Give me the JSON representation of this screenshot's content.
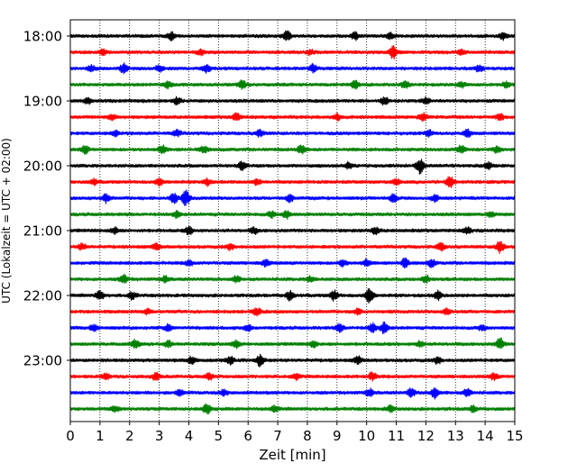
{
  "chart_data": {
    "type": "line",
    "title": "",
    "xlabel": "Zeit  [min]",
    "ylabel": "UTC (Lokalzeit = UTC + 02:00)",
    "xlim": [
      0,
      15
    ],
    "x_ticks": [
      0,
      1,
      2,
      3,
      4,
      5,
      6,
      7,
      8,
      9,
      10,
      11,
      12,
      13,
      14,
      15
    ],
    "y_tick_labels": [
      "18:00",
      "19:00",
      "20:00",
      "21:00",
      "22:00",
      "23:00"
    ],
    "trace_interval_minutes": 15,
    "start_time": "18:00",
    "trace_count": 24,
    "color_cycle": [
      "#000000",
      "#ff0000",
      "#0000ff",
      "#008000"
    ],
    "vertical_grid": "dotted",
    "series": [
      {
        "start": "18:00",
        "events": [
          [
            3.4,
            0.5
          ],
          [
            7.3,
            0.7
          ],
          [
            9.6,
            0.45
          ],
          [
            10.8,
            0.4
          ],
          [
            14.6,
            0.5
          ]
        ]
      },
      {
        "start": "18:15",
        "events": [
          [
            1.1,
            0.4
          ],
          [
            4.4,
            0.3
          ],
          [
            8.1,
            0.3
          ],
          [
            10.9,
            0.8
          ],
          [
            13.2,
            0.3
          ]
        ]
      },
      {
        "start": "18:30",
        "events": [
          [
            0.7,
            0.4
          ],
          [
            1.8,
            0.6
          ],
          [
            3.0,
            0.4
          ],
          [
            4.6,
            0.5
          ],
          [
            8.2,
            0.5
          ],
          [
            13.8,
            0.5
          ]
        ]
      },
      {
        "start": "18:45",
        "events": [
          [
            3.3,
            0.4
          ],
          [
            5.8,
            0.55
          ],
          [
            9.6,
            0.55
          ],
          [
            11.3,
            0.4
          ],
          [
            13.2,
            0.35
          ],
          [
            14.7,
            0.35
          ]
        ]
      },
      {
        "start": "19:00",
        "events": [
          [
            0.6,
            0.4
          ],
          [
            3.6,
            0.45
          ],
          [
            10.6,
            0.5
          ],
          [
            12.0,
            0.35
          ]
        ]
      },
      {
        "start": "19:15",
        "events": [
          [
            1.4,
            0.4
          ],
          [
            5.6,
            0.5
          ],
          [
            9.0,
            0.4
          ],
          [
            11.9,
            0.5
          ],
          [
            14.5,
            0.4
          ]
        ]
      },
      {
        "start": "19:30",
        "events": [
          [
            1.5,
            0.35
          ],
          [
            3.6,
            0.4
          ],
          [
            6.4,
            0.45
          ],
          [
            12.1,
            0.4
          ],
          [
            13.4,
            0.45
          ]
        ]
      },
      {
        "start": "19:45",
        "events": [
          [
            0.5,
            0.5
          ],
          [
            3.1,
            0.55
          ],
          [
            4.5,
            0.45
          ],
          [
            7.8,
            0.5
          ],
          [
            13.2,
            0.55
          ],
          [
            14.4,
            0.4
          ]
        ]
      },
      {
        "start": "20:00",
        "events": [
          [
            5.8,
            0.5
          ],
          [
            9.4,
            0.4
          ],
          [
            11.8,
            1.0
          ],
          [
            14.1,
            0.4
          ]
        ]
      },
      {
        "start": "20:15",
        "events": [
          [
            0.8,
            0.35
          ],
          [
            3.0,
            0.4
          ],
          [
            4.6,
            0.45
          ],
          [
            6.3,
            0.35
          ],
          [
            11.0,
            0.4
          ],
          [
            12.8,
            0.75
          ]
        ]
      },
      {
        "start": "20:30",
        "events": [
          [
            1.2,
            0.55
          ],
          [
            3.5,
            0.75
          ],
          [
            3.9,
            1.0
          ],
          [
            7.4,
            0.45
          ],
          [
            10.9,
            0.5
          ],
          [
            12.3,
            0.4
          ]
        ]
      },
      {
        "start": "20:45",
        "events": [
          [
            3.6,
            0.45
          ],
          [
            6.8,
            0.45
          ],
          [
            7.3,
            0.5
          ],
          [
            14.2,
            0.4
          ]
        ]
      },
      {
        "start": "21:00",
        "events": [
          [
            1.5,
            0.4
          ],
          [
            4.0,
            0.5
          ],
          [
            6.2,
            0.4
          ],
          [
            10.3,
            0.45
          ],
          [
            13.4,
            0.4
          ]
        ]
      },
      {
        "start": "21:15",
        "events": [
          [
            0.4,
            0.4
          ],
          [
            2.9,
            0.4
          ],
          [
            5.4,
            0.35
          ],
          [
            12.5,
            0.5
          ],
          [
            14.5,
            0.8
          ]
        ]
      },
      {
        "start": "21:30",
        "events": [
          [
            4.0,
            0.35
          ],
          [
            6.6,
            0.45
          ],
          [
            9.2,
            0.4
          ],
          [
            10.0,
            0.45
          ],
          [
            11.3,
            0.6
          ],
          [
            12.2,
            0.5
          ]
        ]
      },
      {
        "start": "21:45",
        "events": [
          [
            1.8,
            0.55
          ],
          [
            3.2,
            0.4
          ],
          [
            5.6,
            0.4
          ],
          [
            8.1,
            0.35
          ],
          [
            12.0,
            0.45
          ]
        ]
      },
      {
        "start": "22:00",
        "events": [
          [
            1.0,
            0.6
          ],
          [
            2.1,
            0.5
          ],
          [
            7.4,
            0.6
          ],
          [
            8.9,
            0.65
          ],
          [
            10.1,
            1.0
          ],
          [
            12.4,
            0.55
          ]
        ]
      },
      {
        "start": "22:15",
        "events": [
          [
            2.6,
            0.3
          ],
          [
            6.3,
            0.45
          ],
          [
            9.7,
            0.35
          ],
          [
            12.7,
            0.4
          ]
        ]
      },
      {
        "start": "22:30",
        "events": [
          [
            0.8,
            0.4
          ],
          [
            3.3,
            0.4
          ],
          [
            6.0,
            0.4
          ],
          [
            9.1,
            0.5
          ],
          [
            10.2,
            0.6
          ],
          [
            10.6,
            0.8
          ],
          [
            13.9,
            0.4
          ]
        ]
      },
      {
        "start": "22:45",
        "events": [
          [
            2.2,
            0.55
          ],
          [
            3.3,
            0.4
          ],
          [
            5.6,
            0.45
          ],
          [
            8.2,
            0.4
          ],
          [
            11.8,
            0.35
          ],
          [
            14.5,
            0.75
          ]
        ]
      },
      {
        "start": "23:00",
        "events": [
          [
            4.1,
            0.45
          ],
          [
            5.4,
            0.5
          ],
          [
            6.4,
            0.7
          ],
          [
            9.7,
            0.5
          ],
          [
            12.4,
            0.4
          ]
        ]
      },
      {
        "start": "23:15",
        "events": [
          [
            1.2,
            0.4
          ],
          [
            2.9,
            0.45
          ],
          [
            4.7,
            0.4
          ],
          [
            7.6,
            0.4
          ],
          [
            10.2,
            0.55
          ],
          [
            14.3,
            0.4
          ]
        ]
      },
      {
        "start": "23:30",
        "events": [
          [
            3.7,
            0.35
          ],
          [
            5.2,
            0.4
          ],
          [
            10.1,
            0.5
          ],
          [
            11.5,
            0.55
          ],
          [
            12.3,
            0.7
          ],
          [
            13.4,
            0.5
          ]
        ]
      },
      {
        "start": "23:45",
        "events": [
          [
            1.5,
            0.4
          ],
          [
            4.6,
            0.6
          ],
          [
            6.9,
            0.45
          ],
          [
            10.8,
            0.4
          ],
          [
            13.6,
            0.4
          ]
        ]
      }
    ]
  }
}
